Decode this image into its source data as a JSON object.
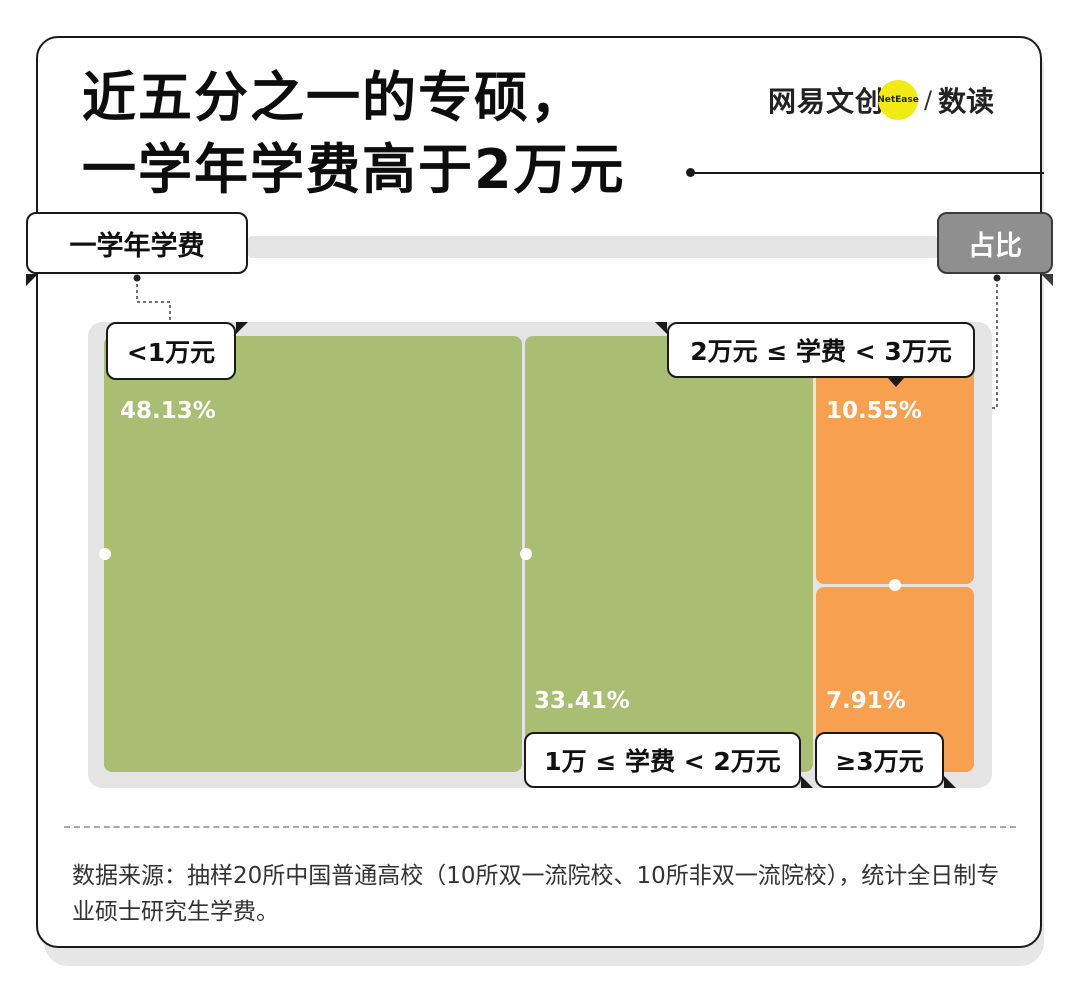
{
  "title": {
    "line1": "近五分之一的专硕，",
    "line2": "一学年学费高于2万元"
  },
  "logo": {
    "brand": "网易文创",
    "badge": "NetEase",
    "slash": "/",
    "sub": "数读"
  },
  "axis": {
    "left_label": "一学年学费",
    "right_label": "占比"
  },
  "chart_data": {
    "type": "treemap",
    "title": "近五分之一的专硕，一学年学费高于2万元",
    "unit": "%",
    "categories": [
      "<1万元",
      "1万 ≤ 学费 < 2万元",
      "2万元 ≤ 学费 < 3万元",
      "≥3万元"
    ],
    "values": [
      48.13,
      33.41,
      10.55,
      7.91
    ],
    "value_labels": [
      "48.13%",
      "33.41%",
      "10.55%",
      "7.91%"
    ],
    "colors": [
      "#a9be72",
      "#a9be72",
      "#f6a050",
      "#f6a050"
    ]
  },
  "colors": {
    "green": "#a9be72",
    "orange": "#f6a050",
    "background": "#e4e4e4",
    "logo_yellow": "#f2ea14"
  },
  "source": "数据来源：抽样20所中国普通高校（10所双一流院校、10所非双一流院校），统计全日制专业硕士研究生学费。"
}
